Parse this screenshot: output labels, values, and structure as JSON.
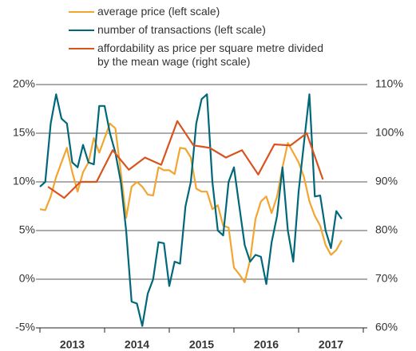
{
  "chart_data": {
    "type": "line",
    "x": [
      2013,
      2013.083,
      2013.167,
      2013.25,
      2013.333,
      2013.417,
      2013.5,
      2013.583,
      2013.667,
      2013.75,
      2013.833,
      2013.917,
      2014,
      2014.083,
      2014.167,
      2014.25,
      2014.333,
      2014.417,
      2014.5,
      2014.583,
      2014.667,
      2014.75,
      2014.833,
      2014.917,
      2015,
      2015.083,
      2015.167,
      2015.25,
      2015.333,
      2015.417,
      2015.5,
      2015.583,
      2015.667,
      2015.75,
      2015.833,
      2015.917,
      2016,
      2016.083,
      2016.167,
      2016.25,
      2016.333,
      2016.417,
      2016.5,
      2016.583,
      2016.667,
      2016.75,
      2016.833,
      2016.917,
      2017,
      2017.083,
      2017.167,
      2017.25,
      2017.333,
      2017.417,
      2017.5,
      2017.583,
      2017.667
    ],
    "series": [
      {
        "name": "average price (left scale)",
        "color": "#f2a531",
        "values": [
          7.2,
          7.1,
          8.5,
          10.5,
          12,
          13.5,
          11,
          9,
          11,
          12,
          14.5,
          13,
          14.5,
          16,
          15.5,
          11,
          6.3,
          9.5,
          10,
          9.5,
          8.7,
          8.6,
          11.5,
          11.2,
          11.2,
          10.8,
          13.5,
          13.4,
          12.5,
          9.3,
          9,
          9,
          7.2,
          7.6,
          5.5,
          5.3,
          1.2,
          0.5,
          -0.3,
          2,
          6.2,
          8,
          8.5,
          6.8,
          8.5,
          11.5,
          14,
          13,
          12,
          10.5,
          8,
          6.5,
          5.5,
          3.5,
          2.5,
          3,
          4
        ]
      },
      {
        "name": "number of transactions (left scale)",
        "color": "#00687a",
        "values": [
          9.5,
          10,
          16,
          19,
          16.5,
          16,
          12,
          11.5,
          13.8,
          12,
          11.8,
          17.8,
          17.8,
          15,
          13,
          10,
          5,
          -2.3,
          -2.5,
          -4.8,
          -1.5,
          0,
          3.8,
          3.7,
          -0.7,
          1.8,
          1.6,
          7.5,
          10,
          16,
          18.5,
          19,
          10,
          5,
          4.5,
          10,
          11.5,
          7.5,
          3.5,
          1.8,
          2.5,
          2.3,
          -0.5,
          3.8,
          6.5,
          11.5,
          5,
          1.8,
          9,
          14,
          19,
          8.5,
          8.6,
          5,
          3.2,
          7,
          6.2
        ]
      },
      {
        "name": "affordability as price per square metre divided by the mean wage (right scale)",
        "color": "#d9531e",
        "axis": "y2",
        "x": [
          2013.125,
          2013.375,
          2013.625,
          2013.875,
          2014.125,
          2014.375,
          2014.625,
          2014.875,
          2015.125,
          2015.375,
          2015.625,
          2015.875,
          2016.125,
          2016.375,
          2016.625,
          2016.875,
          2017.125,
          2017.375
        ],
        "values": [
          89,
          86.7,
          90,
          90,
          96.5,
          92.5,
          95,
          93.5,
          102.5,
          97.5,
          97,
          95,
          96.5,
          91.5,
          97.7,
          97.5,
          100,
          90.5
        ]
      }
    ],
    "xlim": [
      2013,
      2018
    ],
    "xticks": [
      {
        "value": 2013.5,
        "label": "2013"
      },
      {
        "value": 2014.5,
        "label": "2014"
      },
      {
        "value": 2015.5,
        "label": "2015"
      },
      {
        "value": 2016.5,
        "label": "2016"
      },
      {
        "value": 2017.5,
        "label": "2017"
      }
    ],
    "ylim": [
      -5,
      20
    ],
    "yticks": [
      {
        "value": -5,
        "label": "-5%"
      },
      {
        "value": 0,
        "label": "0%"
      },
      {
        "value": 5,
        "label": "5%"
      },
      {
        "value": 10,
        "label": "10%"
      },
      {
        "value": 15,
        "label": "15%"
      },
      {
        "value": 20,
        "label": "20%"
      }
    ],
    "y2lim": [
      60,
      110
    ],
    "y2ticks": [
      {
        "value": 60,
        "label": "60%"
      },
      {
        "value": 70,
        "label": "70%"
      },
      {
        "value": 80,
        "label": "80%"
      },
      {
        "value": 90,
        "label": "90%"
      },
      {
        "value": 100,
        "label": "100%"
      },
      {
        "value": 110,
        "label": "110%"
      }
    ],
    "grid": true
  }
}
